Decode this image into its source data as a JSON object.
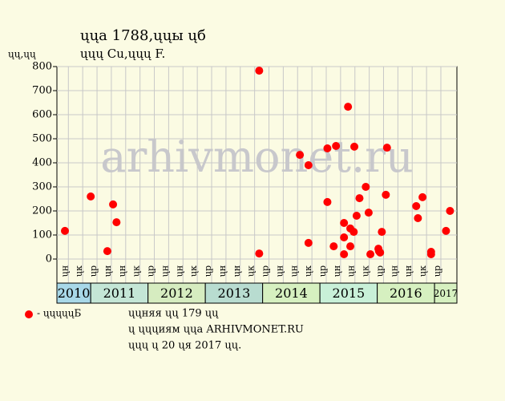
{
  "chart_data": {
    "type": "scatter",
    "title": "ųųa 1788,ųųы ųб",
    "subtitle": "ųųų Cu,ųųų F.",
    "y_label": "ųų,ųų",
    "watermark": "arhivmonet.ru",
    "legend_label": "- ųųųųųБ",
    "notes": [
      "ųųняя ųų 179 ųų",
      "ų ųųųиям ųųa ARHIVMONET.RU",
      "ųųų ų 20 ųя 2017 ųų."
    ],
    "color": "#ff0000",
    "grid": true,
    "xlim": [
      2010.41,
      2017.39
    ],
    "ylim": [
      0,
      800
    ],
    "yticks": [
      0,
      100,
      200,
      300,
      400,
      500,
      600,
      700,
      800
    ],
    "xticks": [
      {
        "value": 2010.61,
        "label": "ųн"
      },
      {
        "value": 2010.86,
        "label": "ųк"
      },
      {
        "value": 2011.11,
        "label": "ųр"
      },
      {
        "value": 2011.36,
        "label": "ųн"
      },
      {
        "value": 2011.61,
        "label": "ųн"
      },
      {
        "value": 2011.86,
        "label": "ųк"
      },
      {
        "value": 2012.11,
        "label": "ųр"
      },
      {
        "value": 2012.36,
        "label": "ųн"
      },
      {
        "value": 2012.61,
        "label": "ųн"
      },
      {
        "value": 2012.86,
        "label": "ųк"
      },
      {
        "value": 2013.11,
        "label": "ųр"
      },
      {
        "value": 2013.36,
        "label": "ųн"
      },
      {
        "value": 2013.61,
        "label": "ųн"
      },
      {
        "value": 2013.86,
        "label": "ųк"
      },
      {
        "value": 2014.11,
        "label": "ųр"
      },
      {
        "value": 2014.36,
        "label": "ųн"
      },
      {
        "value": 2014.61,
        "label": "ųн"
      },
      {
        "value": 2014.86,
        "label": "ųк"
      },
      {
        "value": 2015.11,
        "label": "ųр"
      },
      {
        "value": 2015.36,
        "label": "ųн"
      },
      {
        "value": 2015.61,
        "label": "ųн"
      },
      {
        "value": 2015.86,
        "label": "ųк"
      },
      {
        "value": 2016.11,
        "label": "ųр"
      },
      {
        "value": 2016.36,
        "label": "ųн"
      },
      {
        "value": 2016.61,
        "label": "ųн"
      },
      {
        "value": 2016.86,
        "label": "ųк"
      },
      {
        "value": 2017.11,
        "label": "ųр"
      }
    ],
    "years": [
      2010,
      2011,
      2012,
      2013,
      2014,
      2015,
      2016,
      2017
    ],
    "year_colors": [
      "#a8d8e8",
      "#c4e6d6",
      "#d6ecc0",
      "#b8dcd0",
      "#d6f0c0",
      "#c8f0d8",
      "#d6f0c0",
      "#d6f0c0"
    ],
    "x": [
      2010.55,
      2011.0,
      2011.29,
      2011.39,
      2011.45,
      2013.94,
      2013.94,
      2014.65,
      2014.8,
      2014.8,
      2015.13,
      2015.13,
      2015.24,
      2015.28,
      2015.42,
      2015.42,
      2015.42,
      2015.49,
      2015.53,
      2015.53,
      2015.59,
      2015.6,
      2015.64,
      2015.69,
      2015.8,
      2015.85,
      2015.88,
      2016.02,
      2016.03,
      2016.05,
      2016.08,
      2016.15,
      2016.17,
      2016.68,
      2016.71,
      2016.79,
      2016.94,
      2016.94,
      2017.2,
      2017.27
    ],
    "values": [
      117,
      260,
      33,
      227,
      153,
      783,
      23,
      433,
      390,
      67,
      237,
      460,
      53,
      470,
      150,
      90,
      20,
      633,
      53,
      127,
      113,
      467,
      180,
      253,
      300,
      193,
      20,
      43,
      33,
      27,
      113,
      267,
      463,
      220,
      170,
      257,
      30,
      20,
      117,
      200
    ]
  }
}
